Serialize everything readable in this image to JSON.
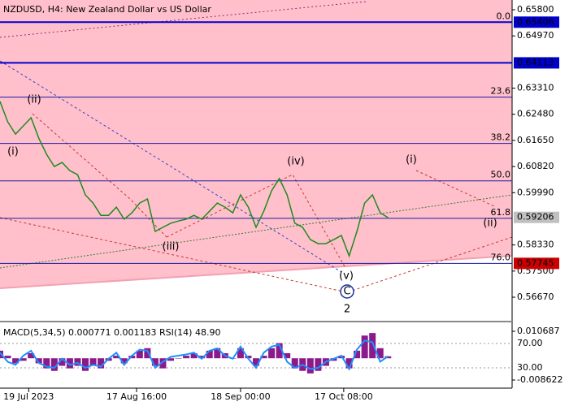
{
  "chart_data": [
    {
      "type": "price",
      "title": "NZDUSD, H4:  New Zealand Dollar vs US Dollar",
      "x": [
        0,
        1,
        2,
        3,
        4,
        5,
        6,
        7,
        8,
        9,
        10,
        11,
        12,
        13,
        14,
        15,
        16,
        17,
        18,
        19,
        20,
        21,
        22,
        23,
        24,
        25,
        26,
        27,
        28,
        29,
        30,
        31,
        32,
        33,
        34,
        35,
        36,
        37,
        38,
        39,
        40,
        41,
        42,
        43,
        44,
        45,
        46,
        47,
        48,
        49,
        50
      ],
      "values": [
        0.6289,
        0.6224,
        0.6185,
        0.6211,
        0.6237,
        0.6172,
        0.6121,
        0.6082,
        0.6095,
        0.6069,
        0.6056,
        0.5992,
        0.5966,
        0.5927,
        0.5927,
        0.5953,
        0.5915,
        0.5935,
        0.5966,
        0.5979,
        0.5876,
        0.5889,
        0.5902,
        0.5909,
        0.5915,
        0.5927,
        0.5915,
        0.594,
        0.5966,
        0.5953,
        0.5935,
        0.5992,
        0.5953,
        0.5889,
        0.594,
        0.6005,
        0.6044,
        0.5992,
        0.5902,
        0.5889,
        0.585,
        0.5837,
        0.5837,
        0.585,
        0.5863,
        0.5798,
        0.5876,
        0.5966,
        0.5992,
        0.5935,
        0.592
      ],
      "color": "#1f8a1f",
      "xlim": [
        0,
        66
      ],
      "ylim": [
        0.56,
        0.6611
      ],
      "yticks": [
        {
          "value": 0.658,
          "label": "0.65800"
        },
        {
          "value": 0.6497,
          "label": "0.64970"
        },
        {
          "value": 0.6331,
          "label": "0.63310"
        },
        {
          "value": 0.6248,
          "label": "0.62480"
        },
        {
          "value": 0.6165,
          "label": "0.61650"
        },
        {
          "value": 0.6082,
          "label": "0.60820"
        },
        {
          "value": 0.5999,
          "label": "0.59990"
        },
        {
          "value": 0.5833,
          "label": "0.58330"
        },
        {
          "value": 0.575,
          "label": "0.57500"
        },
        {
          "value": 0.5667,
          "label": "0.56670"
        }
      ],
      "xticks": [
        {
          "value": 3.7,
          "label": "19 Jul 2023"
        },
        {
          "value": 17.6,
          "label": "17 Aug 16:00"
        },
        {
          "value": 31,
          "label": "18 Sep 00:00"
        },
        {
          "value": 44.3,
          "label": "17 Oct 08:00"
        }
      ],
      "price_lines": [
        {
          "value": 0.65406,
          "color": "#0000cc"
        },
        {
          "value": 0.64113,
          "color": "#0000cc"
        },
        {
          "value": 0.59206,
          "color": "#c0c0c0"
        },
        {
          "value": 0.57745,
          "color": "#cc0000"
        }
      ],
      "fib_levels": [
        {
          "value": 0.65406,
          "label": "0.0"
        },
        {
          "value": 0.63025,
          "label": "23.6"
        },
        {
          "value": 0.61555,
          "label": "38.2"
        },
        {
          "value": 0.60366,
          "label": "50.0"
        },
        {
          "value": 0.59176,
          "label": "61.8"
        },
        {
          "value": 0.57745,
          "label": "76.0"
        }
      ],
      "wave_labels": [
        "(i)",
        "(ii)",
        "(iii)",
        "(iv)",
        "(v)",
        "C",
        "2",
        "(i)",
        "(ii)"
      ]
    },
    {
      "type": "indicator",
      "title": "MACD(5,34,5) 0.000771 0.001183 RSI(14) 48.90",
      "x": [
        0,
        1,
        2,
        3,
        4,
        5,
        6,
        7,
        8,
        9,
        10,
        11,
        12,
        13,
        14,
        15,
        16,
        17,
        18,
        19,
        20,
        21,
        22,
        23,
        24,
        25,
        26,
        27,
        28,
        29,
        30,
        31,
        32,
        33,
        34,
        35,
        36,
        37,
        38,
        39,
        40,
        41,
        42,
        43,
        44,
        45,
        46,
        47,
        48,
        49,
        50
      ],
      "series": [
        {
          "color": "#8b1a8b",
          "values": [
            0.003,
            0.001,
            -0.002,
            -0.001,
            0.002,
            -0.002,
            -0.004,
            -0.005,
            -0.003,
            -0.004,
            -0.003,
            -0.005,
            -0.003,
            -0.004,
            -0.001,
            0.001,
            -0.002,
            0.001,
            0.003,
            0.004,
            -0.003,
            -0.004,
            -0.001,
            0,
            0.001,
            0.002,
            0.001,
            0.003,
            0.004,
            0.002,
            0,
            0.004,
            0.001,
            -0.003,
            0.001,
            0.004,
            0.006,
            0.002,
            -0.004,
            -0.005,
            -0.006,
            -0.005,
            -0.003,
            -0.001,
            0.001,
            -0.004,
            0.003,
            0.009,
            0.01,
            0.004,
            0.000771
          ]
        },
        {
          "color": "#1e90ff",
          "axis": "y2",
          "values": [
            55,
            40,
            35,
            50,
            58,
            38,
            32,
            30,
            45,
            35,
            38,
            30,
            35,
            32,
            45,
            55,
            35,
            50,
            60,
            58,
            30,
            40,
            48,
            50,
            52,
            55,
            45,
            58,
            62,
            50,
            45,
            65,
            45,
            30,
            55,
            65,
            68,
            40,
            30,
            35,
            28,
            30,
            40,
            45,
            50,
            28,
            60,
            75,
            72,
            40,
            48.9
          ]
        }
      ],
      "xlim": [
        0,
        66
      ],
      "ylim": [
        -0.01184,
        0.013262
      ],
      "yticks": [
        0.010687,
        -0.008622
      ],
      "y2lim": [
        -3.33,
        100.67
      ],
      "y2ticks": [
        {
          "value": 70,
          "label": "70.00"
        },
        {
          "value": 30,
          "label": "30.00"
        }
      ]
    }
  ]
}
